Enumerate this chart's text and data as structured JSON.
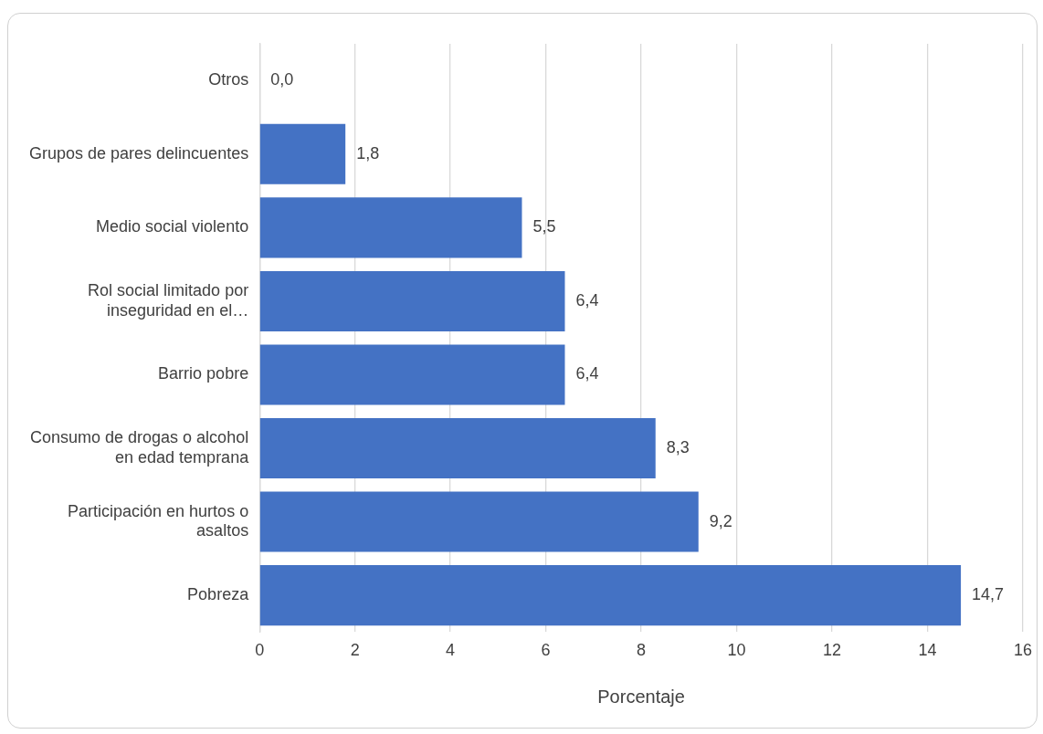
{
  "chart_data": {
    "type": "bar",
    "orientation": "horizontal",
    "xlabel": "Porcentaje",
    "categories": [
      "Otros",
      "Grupos de pares delincuentes",
      "Medio social violento",
      "Rol social limitado por inseguridad en el…",
      "Barrio pobre",
      "Consumo de drogas o alcohol en edad temprana",
      "Participación en hurtos o asaltos",
      "Pobreza"
    ],
    "values": [
      0.0,
      1.8,
      5.5,
      6.4,
      6.4,
      8.3,
      9.2,
      14.7
    ],
    "value_labels": [
      "0,0",
      "1,8",
      "5,5",
      "6,4",
      "6,4",
      "8,3",
      "9,2",
      "14,7"
    ],
    "color": "#4472c4",
    "xlim": [
      0,
      16
    ],
    "xticks": [
      0,
      2,
      4,
      6,
      8,
      10,
      12,
      14,
      16
    ],
    "grid": "x",
    "legend": false
  }
}
